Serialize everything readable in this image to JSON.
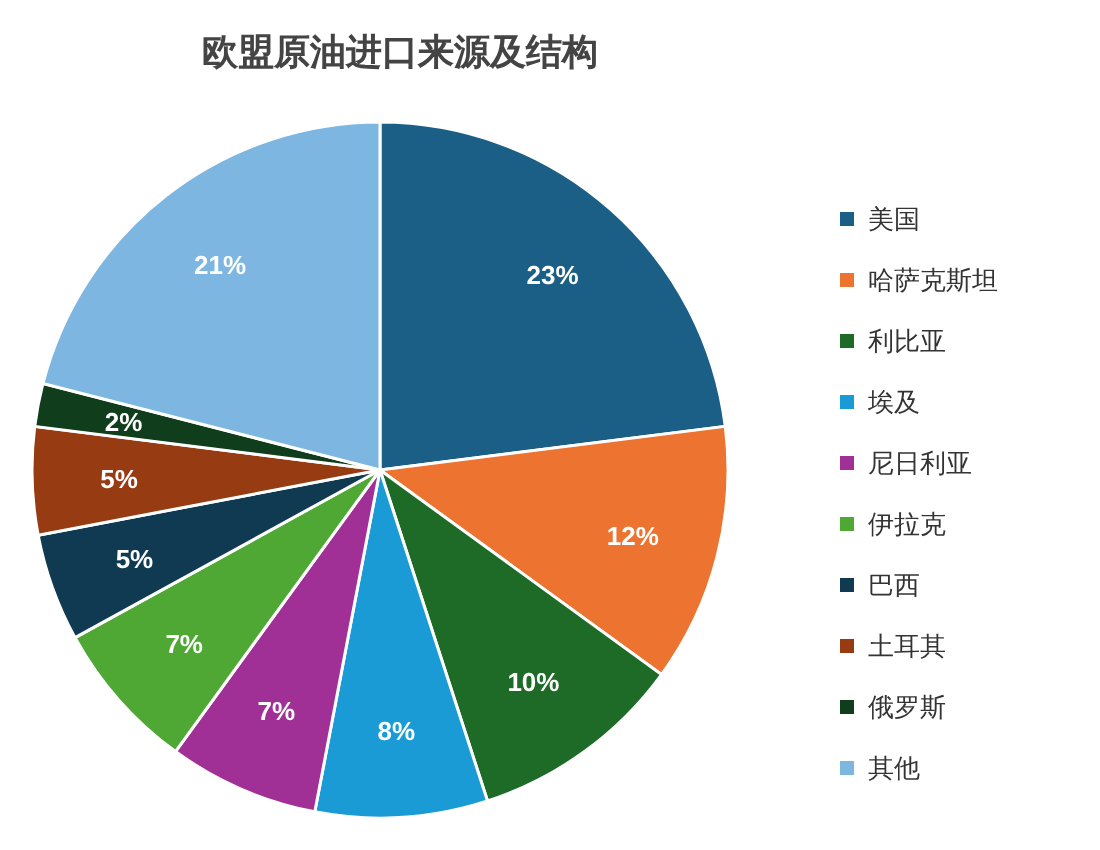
{
  "chart_data": {
    "type": "pie",
    "title": "欧盟原油进口来源及结构",
    "categories": [
      "美国",
      "哈萨克斯坦",
      "利比亚",
      "埃及",
      "尼日利亚",
      "伊拉克",
      "巴西",
      "土耳其",
      "俄罗斯",
      "其他"
    ],
    "values": [
      23,
      12,
      10,
      8,
      7,
      7,
      5,
      5,
      2,
      21
    ],
    "colors": [
      "#1b5e86",
      "#ec7330",
      "#1d6b27",
      "#1a9bd6",
      "#a02f96",
      "#4ea833",
      "#0f3a52",
      "#973c12",
      "#103d1c",
      "#7eb6e2"
    ],
    "value_labels": [
      "23%",
      "12%",
      "10%",
      "8%",
      "7%",
      "7%",
      "5%",
      "5%",
      "2%",
      "21%"
    ],
    "legend": "right"
  }
}
